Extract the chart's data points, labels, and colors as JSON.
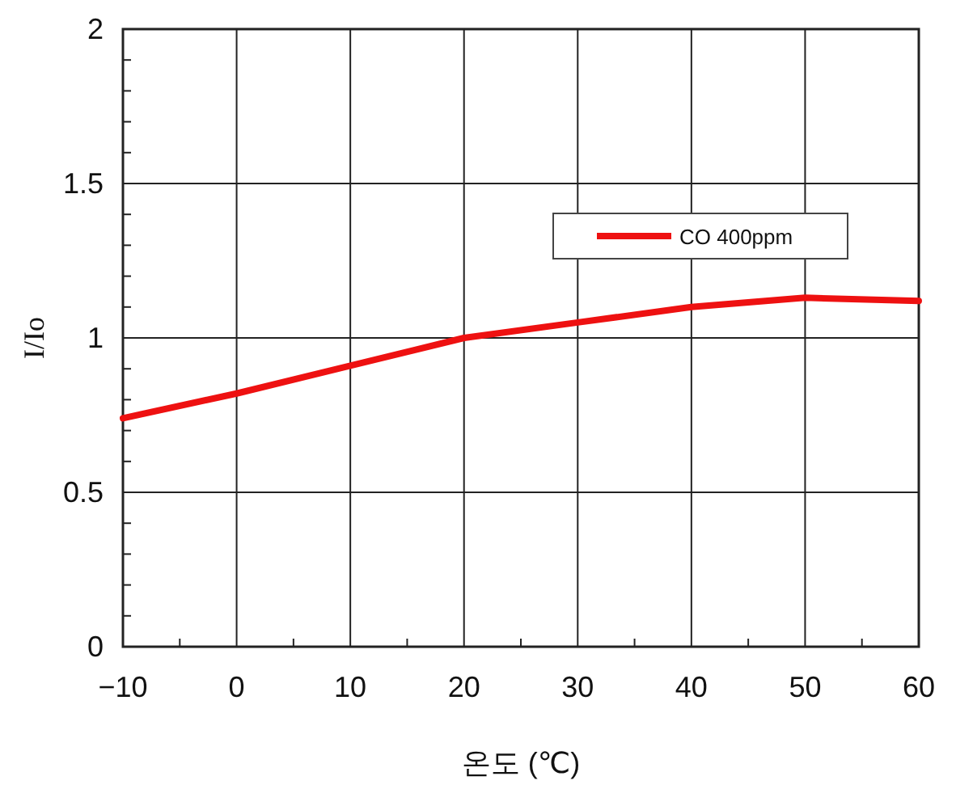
{
  "chart_data": {
    "type": "line",
    "xlabel": "온도 (℃)",
    "ylabel": "I/Io",
    "x": [
      -10,
      0,
      10,
      20,
      30,
      40,
      50,
      60
    ],
    "series": [
      {
        "name": "CO 400ppm",
        "color": "#ee1111",
        "values": [
          0.74,
          0.82,
          0.91,
          1.0,
          1.05,
          1.1,
          1.13,
          1.12
        ]
      }
    ],
    "xlim": [
      -10,
      60
    ],
    "ylim": [
      0,
      2
    ],
    "xticks": [
      -10,
      {
        "value": -5,
        "label": null
      },
      0,
      {
        "value": 5,
        "label": null
      },
      10,
      {
        "value": 15,
        "label": null
      },
      20,
      {
        "value": 25,
        "label": null
      },
      30,
      {
        "value": 35,
        "label": null
      },
      40,
      {
        "value": 45,
        "label": null
      },
      50,
      {
        "value": 55,
        "label": null
      },
      60
    ],
    "yticks": [
      0,
      {
        "value": 0.1,
        "label": null
      },
      {
        "value": 0.2,
        "label": null
      },
      {
        "value": 0.3,
        "label": null
      },
      {
        "value": 0.4,
        "label": null
      },
      0.5,
      {
        "value": 0.6,
        "label": null
      },
      {
        "value": 0.7,
        "label": null
      },
      {
        "value": 0.8,
        "label": null
      },
      {
        "value": 0.9,
        "label": null
      },
      1,
      {
        "value": 1.1,
        "label": null
      },
      {
        "value": 1.2,
        "label": null
      },
      {
        "value": 1.3,
        "label": null
      },
      {
        "value": 1.4,
        "label": null
      },
      1.5,
      {
        "value": 1.6,
        "label": null
      },
      {
        "value": 1.7,
        "label": null
      },
      {
        "value": 1.8,
        "label": null
      },
      {
        "value": 1.9,
        "label": null
      },
      2
    ],
    "grid": true,
    "legend": "top right",
    "marker": "none",
    "line_style": "solid"
  }
}
